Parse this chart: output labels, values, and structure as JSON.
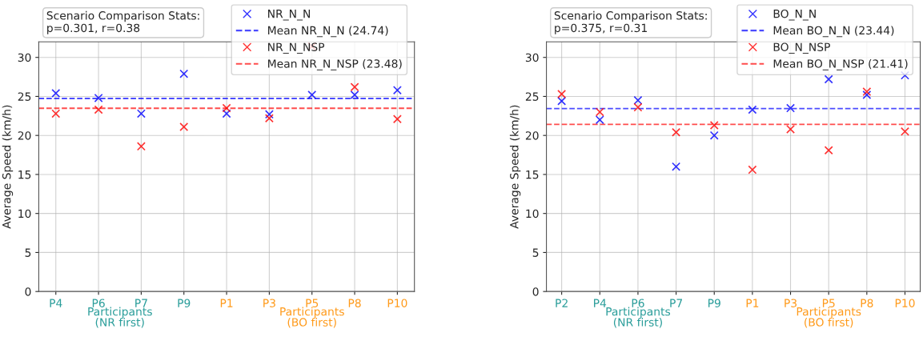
{
  "chart_data": [
    {
      "type": "scatter",
      "ylabel": "Average Speed (km/h)",
      "categories": [
        "P4",
        "P6",
        "P7",
        "P9",
        "P1",
        "P3",
        "P5",
        "P8",
        "P10"
      ],
      "series": [
        {
          "name": "NR_N_N",
          "color": "#0000ff",
          "values": [
            25.4,
            24.8,
            22.8,
            27.9,
            22.8,
            22.7,
            25.2,
            25.2,
            25.8
          ]
        },
        {
          "name": "NR_N_NSP",
          "color": "#ff0000",
          "values": [
            22.8,
            23.3,
            18.6,
            21.1,
            23.5,
            22.2,
            31.4,
            26.2,
            22.1
          ]
        }
      ],
      "ref_lines": [
        {
          "axis": "y",
          "value": 24.74,
          "label": "Mean NR_N_N (24.74)",
          "color": "#0000ff",
          "line_style": "dashed"
        },
        {
          "axis": "y",
          "value": 23.48,
          "label": "Mean NR_N_NSP (23.48)",
          "color": "#ff0000",
          "line_style": "dashed"
        }
      ],
      "annotations": [
        "Scenario Comparison Stats:\np=0.301, r=0.38",
        "Participants\n(NR first)",
        "Participants\n(BO first)"
      ],
      "ylim": [
        0,
        32
      ],
      "yticks": [
        0,
        5,
        10,
        15,
        20,
        25,
        30
      ],
      "grid": true,
      "legend": "top right",
      "marker": "cross"
    },
    {
      "type": "scatter",
      "ylabel": "Average Speed (km/h)",
      "categories": [
        "P2",
        "P4",
        "P6",
        "P7",
        "P9",
        "P1",
        "P3",
        "P5",
        "P8",
        "P10"
      ],
      "series": [
        {
          "name": "BO_N_N",
          "color": "#0000ff",
          "values": [
            24.4,
            22.0,
            24.5,
            16.0,
            20.0,
            23.3,
            23.5,
            27.2,
            25.2,
            27.7
          ]
        },
        {
          "name": "BO_N_NSP",
          "color": "#ff0000",
          "values": [
            25.3,
            23.0,
            23.6,
            20.4,
            21.3,
            15.6,
            20.8,
            18.1,
            25.6,
            20.5
          ]
        }
      ],
      "ref_lines": [
        {
          "axis": "y",
          "value": 23.44,
          "label": "Mean BO_N_N (23.44)",
          "color": "#0000ff",
          "line_style": "dashed"
        },
        {
          "axis": "y",
          "value": 21.41,
          "label": "Mean BO_N_NSP (21.41)",
          "color": "#ff0000",
          "line_style": "dashed"
        }
      ],
      "annotations": [
        "Scenario Comparison Stats:\np=0.375, r=0.31",
        "Participants\n(NR first)",
        "Participants\n(BO first)"
      ],
      "ylim": [
        0,
        32
      ],
      "yticks": [
        0,
        5,
        10,
        15,
        20,
        25,
        30
      ],
      "grid": true,
      "legend": "top right",
      "marker": "cross"
    }
  ]
}
